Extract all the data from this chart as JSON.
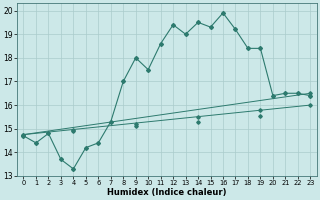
{
  "title": "",
  "xlabel": "Humidex (Indice chaleur)",
  "xlim": [
    -0.5,
    23.5
  ],
  "ylim": [
    13,
    20.3
  ],
  "yticks": [
    13,
    14,
    15,
    16,
    17,
    18,
    19,
    20
  ],
  "xticks": [
    0,
    1,
    2,
    3,
    4,
    5,
    6,
    7,
    8,
    9,
    10,
    11,
    12,
    13,
    14,
    15,
    16,
    17,
    18,
    19,
    20,
    21,
    22,
    23
  ],
  "bg_color": "#cce8e8",
  "grid_color": "#aacccc",
  "line_color": "#2d7a6e",
  "line1_x": [
    0,
    1,
    2,
    3,
    4,
    5,
    6,
    7,
    8,
    9,
    10,
    11,
    12,
    13,
    14,
    15,
    16,
    17,
    18,
    19,
    20,
    21,
    22,
    23
  ],
  "line1_y": [
    14.7,
    14.4,
    14.8,
    13.7,
    13.3,
    14.2,
    14.4,
    15.3,
    17.0,
    18.0,
    17.5,
    18.6,
    19.4,
    19.0,
    19.5,
    19.3,
    19.9,
    19.2,
    18.4,
    18.4,
    16.4,
    16.5,
    16.5,
    16.4
  ],
  "line2_x": [
    0,
    23
  ],
  "line2_y": [
    14.75,
    16.5
  ],
  "line3_x": [
    0,
    23
  ],
  "line3_y": [
    14.75,
    16.0
  ],
  "marker_line2_x": [
    0,
    4,
    9,
    14,
    19,
    23
  ],
  "marker_line2_y": [
    14.75,
    14.95,
    15.22,
    15.5,
    15.78,
    16.5
  ],
  "marker_line3_x": [
    0,
    4,
    9,
    14,
    19,
    23
  ],
  "marker_line3_y": [
    14.75,
    14.9,
    15.1,
    15.3,
    15.55,
    16.0
  ]
}
